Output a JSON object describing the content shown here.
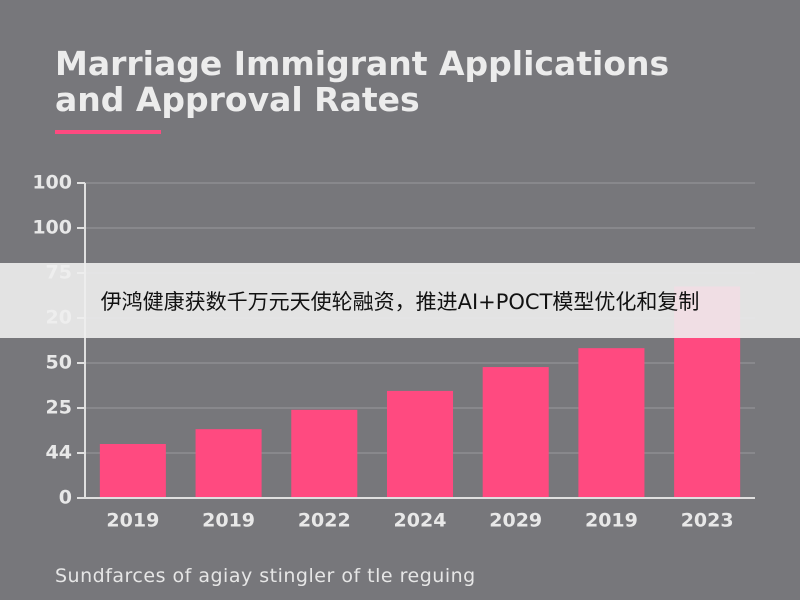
{
  "chart_data": {
    "type": "bar",
    "title": "Marriage Immigrant Applications and Approval Rates",
    "caption": "Sundfarces of agiay stingler of tle reguing",
    "categories": [
      "2019",
      "2019",
      "2022",
      "2024",
      "2029",
      "2019",
      "2023"
    ],
    "values": [
      1.2,
      1.53,
      1.96,
      2.38,
      2.91,
      3.33,
      4.7
    ],
    "color": "#ff4a80",
    "ylim": [
      0,
      7
    ],
    "yticks": [
      0,
      {
        "value": 1,
        "label": "44"
      },
      {
        "value": 2,
        "label": "25"
      },
      {
        "value": 3,
        "label": "50"
      },
      {
        "value": 4,
        "label": "20"
      },
      {
        "value": 5,
        "label": "75"
      },
      {
        "value": 6,
        "label": "100"
      },
      {
        "value": 7,
        "label": "100"
      }
    ],
    "grid": true
  },
  "banner": {
    "text": "伊鸿健康获数千万元天使轮融资，推进AI+POCT模型优化和复制"
  }
}
